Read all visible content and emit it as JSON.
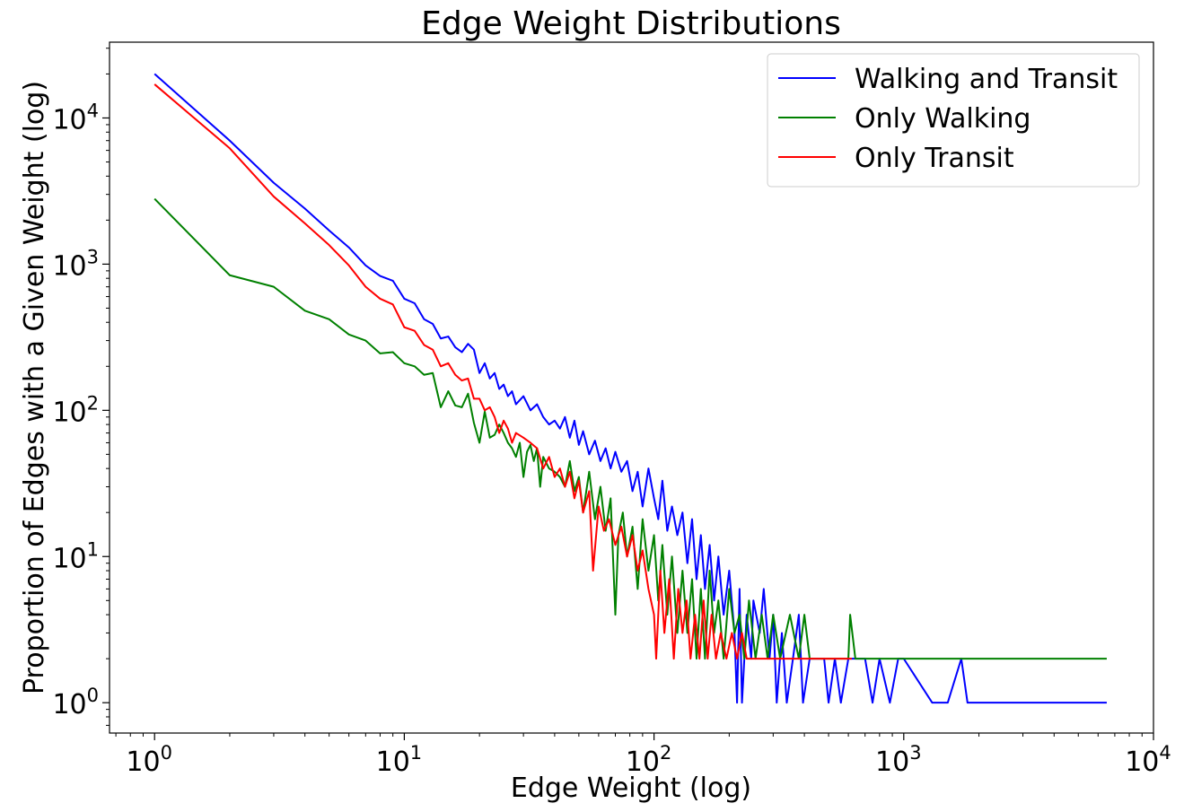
{
  "chart_data": {
    "type": "line",
    "title": "Edge Weight Distributions",
    "xlabel": "Edge Weight (log)",
    "ylabel": "Proportion of Edges with a Given Weight (log)",
    "xscale": "log",
    "yscale": "log",
    "xlim": [
      0.66,
      10000
    ],
    "ylim": [
      0.62,
      33000
    ],
    "grid": false,
    "legend_position": "top-right",
    "x_ticks": [
      {
        "base": "10",
        "exp": "0",
        "value": 1
      },
      {
        "base": "10",
        "exp": "1",
        "value": 10
      },
      {
        "base": "10",
        "exp": "2",
        "value": 100
      },
      {
        "base": "10",
        "exp": "3",
        "value": 1000
      },
      {
        "base": "10",
        "exp": "4",
        "value": 10000
      }
    ],
    "y_ticks": [
      {
        "base": "10",
        "exp": "0",
        "value": 1
      },
      {
        "base": "10",
        "exp": "1",
        "value": 10
      },
      {
        "base": "10",
        "exp": "2",
        "value": 100
      },
      {
        "base": "10",
        "exp": "3",
        "value": 1000
      },
      {
        "base": "10",
        "exp": "4",
        "value": 10000
      }
    ],
    "series": [
      {
        "name": "Walking and Transit",
        "color": "#0000ff",
        "points": [
          [
            1,
            20000
          ],
          [
            2,
            7000
          ],
          [
            3,
            3600
          ],
          [
            4,
            2400
          ],
          [
            5,
            1700
          ],
          [
            6,
            1300
          ],
          [
            7,
            980
          ],
          [
            8,
            830
          ],
          [
            9,
            770
          ],
          [
            10,
            580
          ],
          [
            11,
            540
          ],
          [
            12,
            420
          ],
          [
            13,
            390
          ],
          [
            14,
            310
          ],
          [
            15,
            320
          ],
          [
            16,
            270
          ],
          [
            17,
            250
          ],
          [
            18,
            285
          ],
          [
            19,
            260
          ],
          [
            20,
            180
          ],
          [
            21,
            210
          ],
          [
            22,
            165
          ],
          [
            23,
            180
          ],
          [
            24,
            140
          ],
          [
            25,
            150
          ],
          [
            26,
            125
          ],
          [
            27,
            135
          ],
          [
            28,
            110
          ],
          [
            30,
            125
          ],
          [
            32,
            100
          ],
          [
            34,
            110
          ],
          [
            36,
            90
          ],
          [
            38,
            80
          ],
          [
            40,
            85
          ],
          [
            42,
            75
          ],
          [
            44,
            90
          ],
          [
            46,
            65
          ],
          [
            48,
            85
          ],
          [
            50,
            58
          ],
          [
            52,
            72
          ],
          [
            55,
            50
          ],
          [
            58,
            62
          ],
          [
            61,
            45
          ],
          [
            64,
            55
          ],
          [
            67,
            40
          ],
          [
            70,
            52
          ],
          [
            74,
            38
          ],
          [
            78,
            45
          ],
          [
            82,
            28
          ],
          [
            86,
            38
          ],
          [
            90,
            22
          ],
          [
            95,
            40
          ],
          [
            100,
            25
          ],
          [
            104,
            18
          ],
          [
            108,
            33
          ],
          [
            113,
            15
          ],
          [
            118,
            22
          ],
          [
            124,
            14
          ],
          [
            130,
            20
          ],
          [
            136,
            9
          ],
          [
            142,
            18
          ],
          [
            148,
            7
          ],
          [
            154,
            14
          ],
          [
            160,
            6
          ],
          [
            167,
            12
          ],
          [
            174,
            5
          ],
          [
            181,
            10
          ],
          [
            190,
            4
          ],
          [
            200,
            8
          ],
          [
            210,
            3
          ],
          [
            215,
            1
          ],
          [
            220,
            6
          ],
          [
            225,
            1
          ],
          [
            235,
            4
          ],
          [
            245,
            2
          ],
          [
            250,
            5
          ],
          [
            265,
            3
          ],
          [
            275,
            6
          ],
          [
            290,
            2
          ],
          [
            300,
            4
          ],
          [
            310,
            1
          ],
          [
            325,
            3
          ],
          [
            340,
            1
          ],
          [
            360,
            2
          ],
          [
            380,
            4
          ],
          [
            395,
            1
          ],
          [
            420,
            2
          ],
          [
            440,
            2
          ],
          [
            480,
            2
          ],
          [
            500,
            1
          ],
          [
            530,
            2
          ],
          [
            560,
            1
          ],
          [
            600,
            2
          ],
          [
            640,
            2
          ],
          [
            700,
            2
          ],
          [
            750,
            1
          ],
          [
            800,
            2
          ],
          [
            880,
            1
          ],
          [
            950,
            2
          ],
          [
            1000,
            2
          ],
          [
            1300,
            1
          ],
          [
            1500,
            1
          ],
          [
            1700,
            2
          ],
          [
            1800,
            1
          ],
          [
            3000,
            1
          ],
          [
            6500,
            1
          ]
        ]
      },
      {
        "name": "Only Walking",
        "color": "#008000",
        "points": [
          [
            1,
            2800
          ],
          [
            2,
            840
          ],
          [
            3,
            700
          ],
          [
            4,
            480
          ],
          [
            5,
            420
          ],
          [
            6,
            330
          ],
          [
            7,
            300
          ],
          [
            8,
            245
          ],
          [
            9,
            250
          ],
          [
            10,
            210
          ],
          [
            11,
            200
          ],
          [
            12,
            175
          ],
          [
            13,
            180
          ],
          [
            14,
            105
          ],
          [
            15,
            135
          ],
          [
            16,
            108
          ],
          [
            17,
            105
          ],
          [
            18,
            130
          ],
          [
            19,
            82
          ],
          [
            20,
            60
          ],
          [
            21,
            98
          ],
          [
            22,
            65
          ],
          [
            23,
            68
          ],
          [
            24,
            80
          ],
          [
            25,
            70
          ],
          [
            26,
            60
          ],
          [
            27,
            55
          ],
          [
            28,
            48
          ],
          [
            29,
            60
          ],
          [
            30,
            35
          ],
          [
            31,
            52
          ],
          [
            32,
            58
          ],
          [
            33,
            45
          ],
          [
            34,
            55
          ],
          [
            35,
            30
          ],
          [
            36,
            48
          ],
          [
            38,
            40
          ],
          [
            40,
            38
          ],
          [
            42,
            35
          ],
          [
            44,
            30
          ],
          [
            46,
            45
          ],
          [
            48,
            28
          ],
          [
            50,
            35
          ],
          [
            52,
            20
          ],
          [
            55,
            38
          ],
          [
            58,
            18
          ],
          [
            61,
            30
          ],
          [
            64,
            15
          ],
          [
            67,
            25
          ],
          [
            70,
            4
          ],
          [
            72,
            14
          ],
          [
            75,
            20
          ],
          [
            78,
            10
          ],
          [
            82,
            16
          ],
          [
            86,
            6
          ],
          [
            90,
            18
          ],
          [
            95,
            8
          ],
          [
            100,
            14
          ],
          [
            104,
            5
          ],
          [
            108,
            12
          ],
          [
            113,
            4
          ],
          [
            118,
            10
          ],
          [
            124,
            3
          ],
          [
            130,
            8
          ],
          [
            136,
            3
          ],
          [
            142,
            7
          ],
          [
            148,
            2
          ],
          [
            154,
            6
          ],
          [
            160,
            2
          ],
          [
            167,
            8
          ],
          [
            174,
            3
          ],
          [
            181,
            5
          ],
          [
            190,
            2
          ],
          [
            200,
            6
          ],
          [
            210,
            3
          ],
          [
            220,
            4
          ],
          [
            230,
            2
          ],
          [
            240,
            5
          ],
          [
            255,
            2
          ],
          [
            270,
            4
          ],
          [
            285,
            2
          ],
          [
            300,
            4
          ],
          [
            320,
            2
          ],
          [
            350,
            4
          ],
          [
            380,
            2
          ],
          [
            400,
            4
          ],
          [
            420,
            2
          ],
          [
            500,
            2
          ],
          [
            600,
            2
          ],
          [
            610,
            4
          ],
          [
            640,
            2
          ],
          [
            1000,
            2
          ],
          [
            3000,
            2
          ],
          [
            6500,
            2
          ]
        ]
      },
      {
        "name": "Only Transit",
        "color": "#ff0000",
        "points": [
          [
            1,
            17000
          ],
          [
            2,
            6200
          ],
          [
            3,
            2900
          ],
          [
            4,
            1900
          ],
          [
            5,
            1350
          ],
          [
            6,
            980
          ],
          [
            7,
            700
          ],
          [
            8,
            580
          ],
          [
            9,
            530
          ],
          [
            10,
            370
          ],
          [
            11,
            350
          ],
          [
            12,
            280
          ],
          [
            13,
            260
          ],
          [
            14,
            200
          ],
          [
            15,
            210
          ],
          [
            16,
            175
          ],
          [
            17,
            160
          ],
          [
            18,
            165
          ],
          [
            19,
            120
          ],
          [
            20,
            120
          ],
          [
            21,
            100
          ],
          [
            22,
            105
          ],
          [
            23,
            90
          ],
          [
            24,
            70
          ],
          [
            25,
            85
          ],
          [
            26,
            75
          ],
          [
            27,
            60
          ],
          [
            28,
            70
          ],
          [
            30,
            65
          ],
          [
            32,
            60
          ],
          [
            34,
            55
          ],
          [
            36,
            40
          ],
          [
            38,
            48
          ],
          [
            40,
            35
          ],
          [
            42,
            40
          ],
          [
            44,
            30
          ],
          [
            46,
            38
          ],
          [
            48,
            25
          ],
          [
            50,
            33
          ],
          [
            52,
            20
          ],
          [
            55,
            28
          ],
          [
            57,
            8
          ],
          [
            60,
            22
          ],
          [
            63,
            15
          ],
          [
            66,
            18
          ],
          [
            70,
            12
          ],
          [
            74,
            16
          ],
          [
            78,
            10
          ],
          [
            82,
            14
          ],
          [
            86,
            8
          ],
          [
            90,
            11
          ],
          [
            95,
            6
          ],
          [
            100,
            4
          ],
          [
            102,
            2
          ],
          [
            106,
            8
          ],
          [
            110,
            3
          ],
          [
            115,
            7
          ],
          [
            120,
            2
          ],
          [
            125,
            6
          ],
          [
            130,
            3
          ],
          [
            135,
            5
          ],
          [
            140,
            2
          ],
          [
            146,
            4
          ],
          [
            152,
            2
          ],
          [
            158,
            5
          ],
          [
            164,
            2
          ],
          [
            170,
            4
          ],
          [
            177,
            2
          ],
          [
            185,
            3
          ],
          [
            195,
            2
          ],
          [
            205,
            3
          ],
          [
            215,
            2
          ],
          [
            225,
            3
          ],
          [
            235,
            2
          ],
          [
            250,
            2
          ],
          [
            300,
            2
          ],
          [
            400,
            2
          ],
          [
            500,
            2
          ],
          [
            600,
            2
          ],
          [
            620,
            2
          ]
        ]
      }
    ]
  }
}
